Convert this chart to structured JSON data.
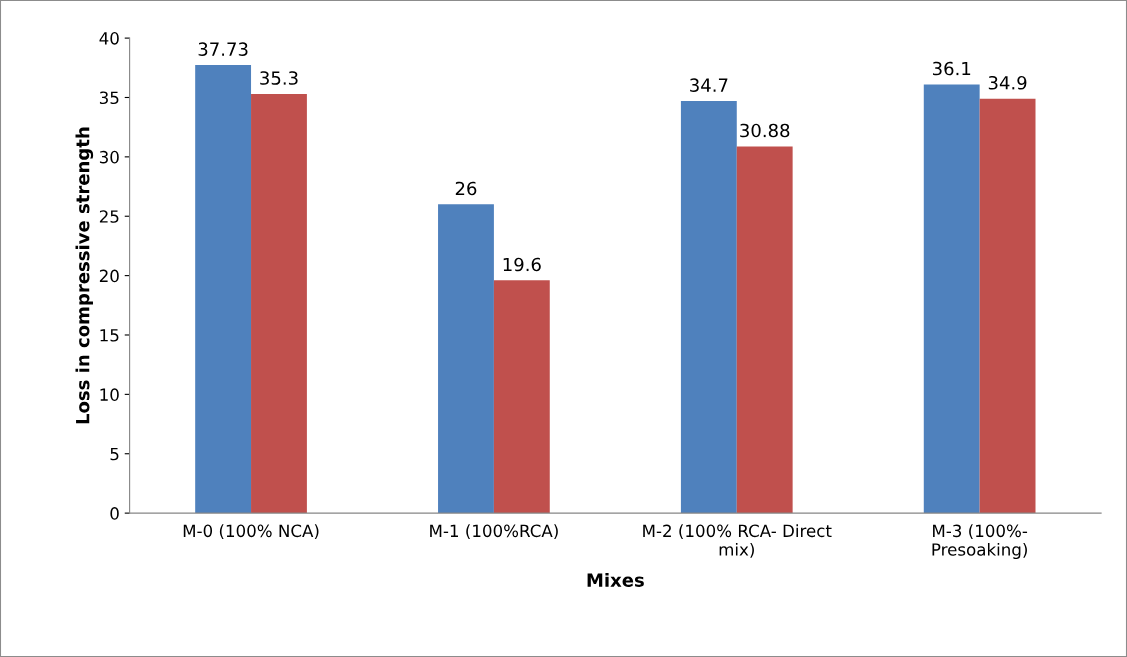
{
  "chart_data": {
    "type": "bar",
    "xlabel": "Mixes",
    "ylabel": "Loss in compressive strength",
    "categories": [
      "M-0 (100% NCA)",
      "M-1 (100%RCA)",
      "M-2 (100% RCA- Direct mix)",
      "M-3 (100%- Presoaking)"
    ],
    "series": [
      {
        "color": "#4f81bd",
        "values": [
          37.73,
          26,
          34.7,
          36.1
        ]
      },
      {
        "color": "#c0504d",
        "values": [
          35.3,
          19.6,
          30.88,
          34.9
        ]
      }
    ],
    "ylim": [
      0,
      40
    ],
    "yticks": [
      0,
      5,
      10,
      15,
      20,
      25,
      30,
      35,
      40
    ],
    "grid": false,
    "legend": false,
    "data_labels": true
  }
}
